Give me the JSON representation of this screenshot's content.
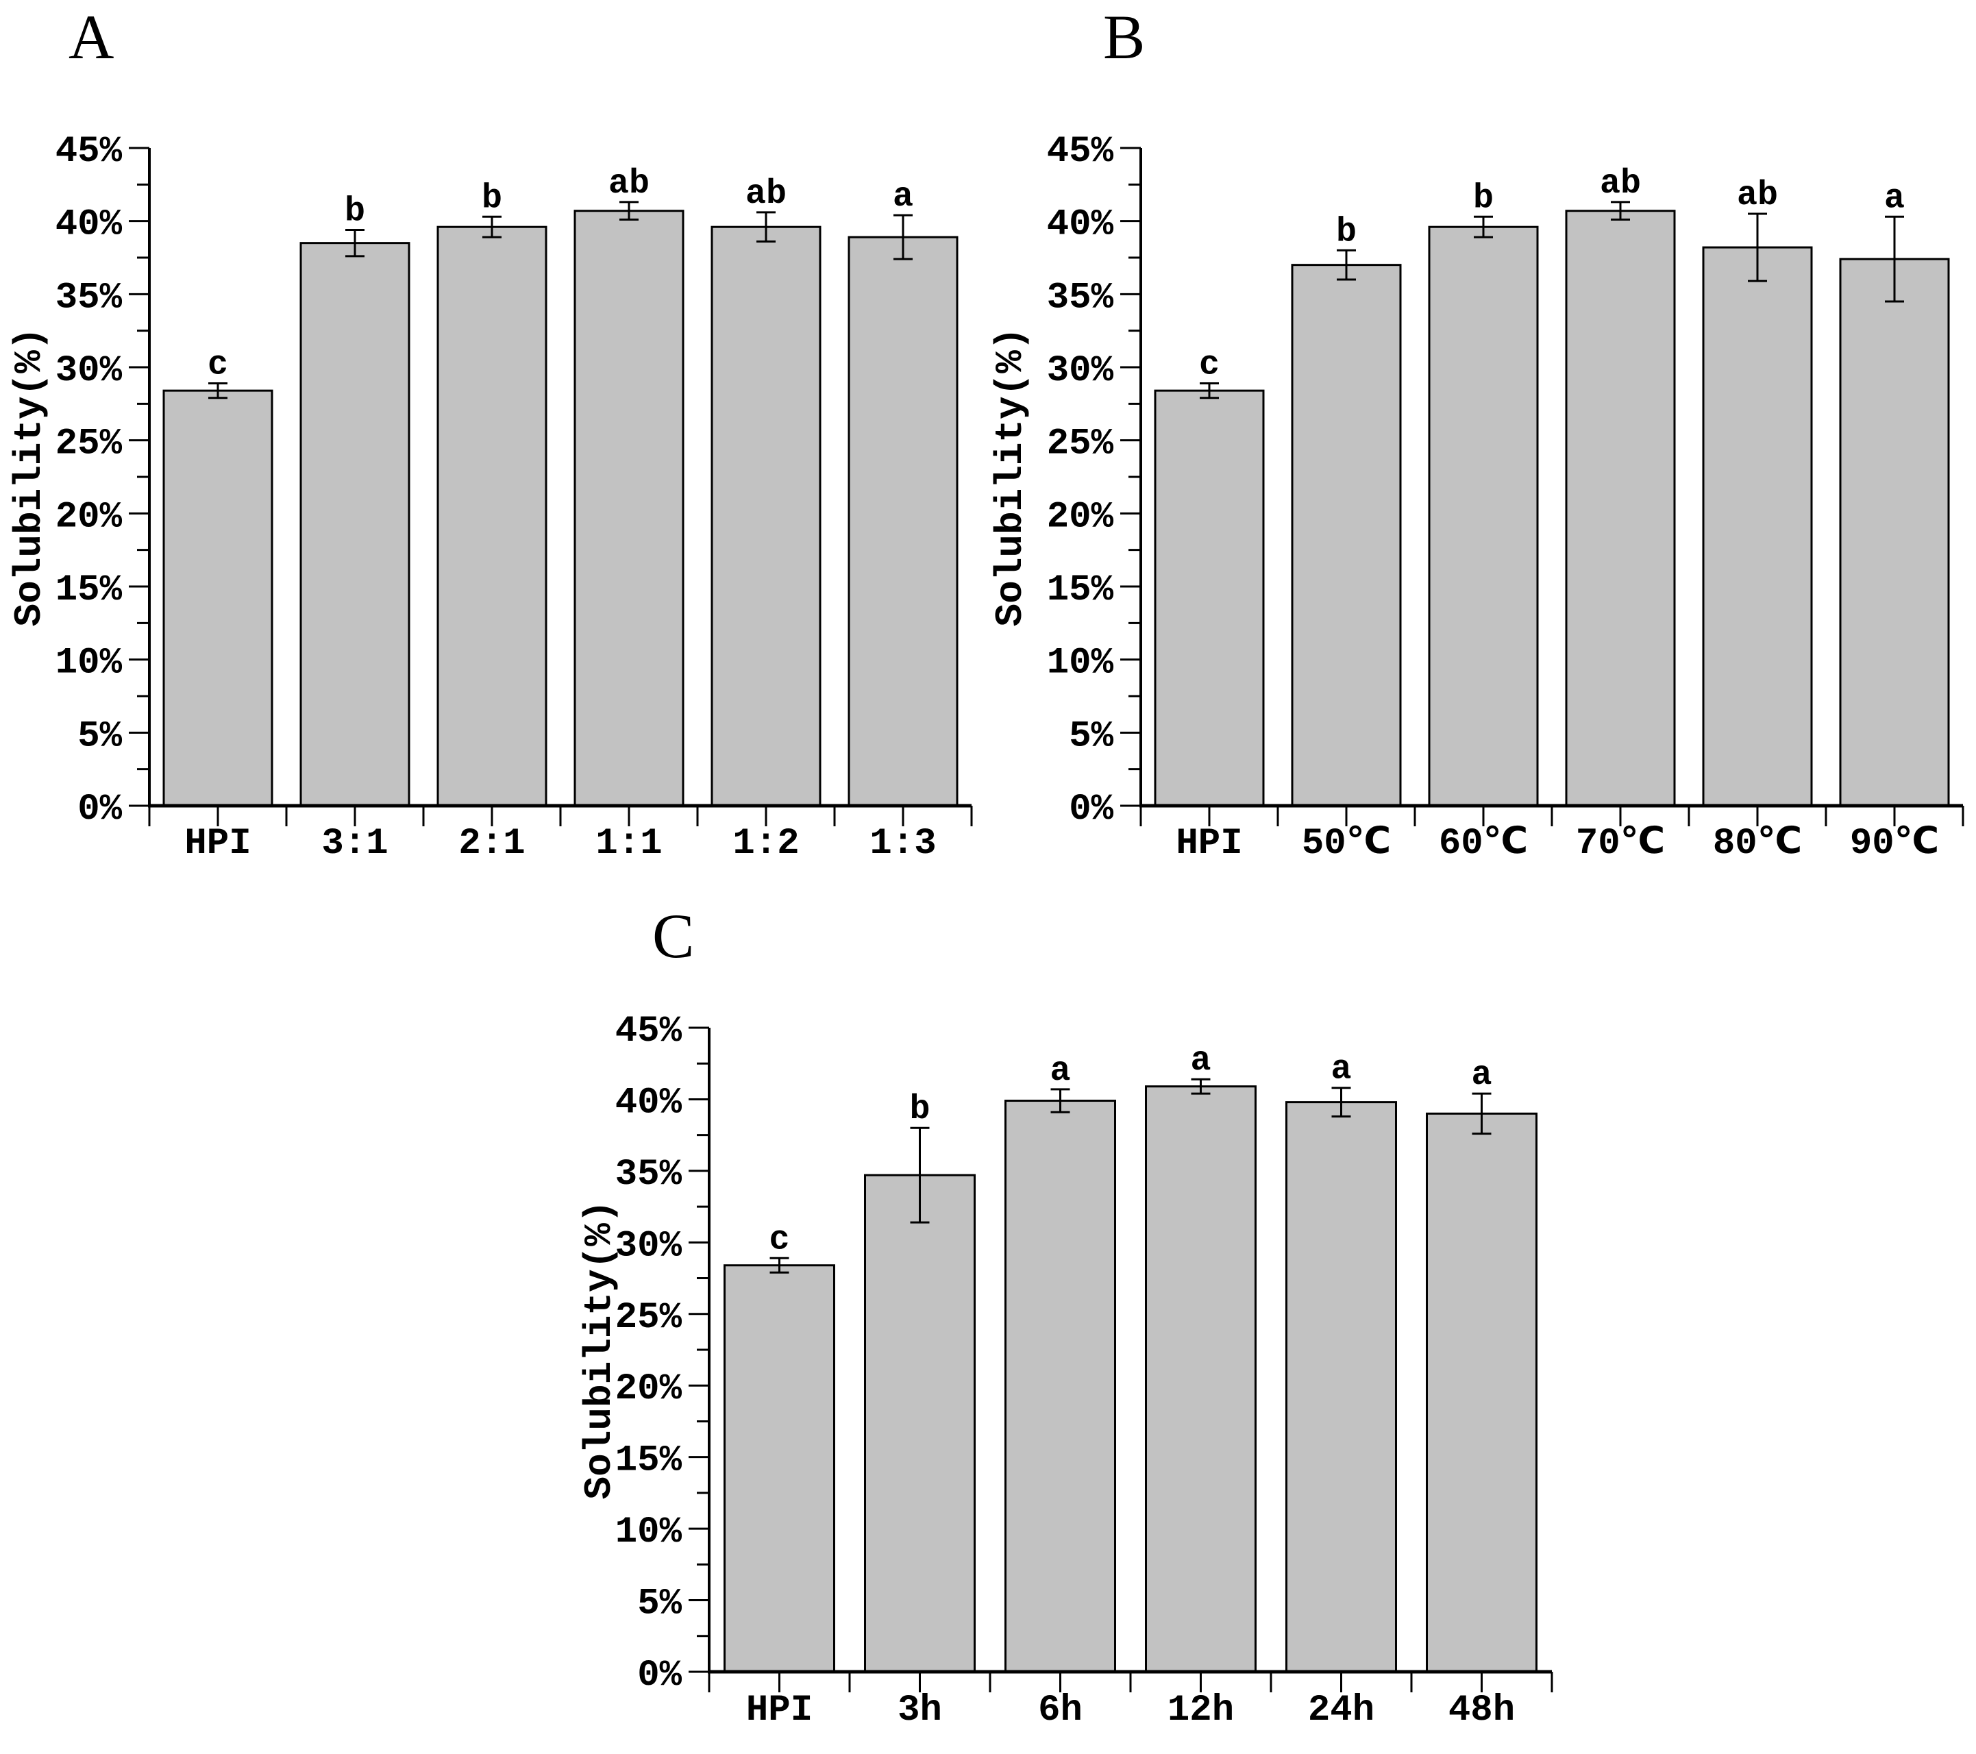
{
  "figure": {
    "background": "#ffffff",
    "bar_fill": "#c2c2c2",
    "bar_stroke": "#000000",
    "axis_color": "#000000"
  },
  "chart_data": [
    {
      "id": "A",
      "panel_label": "A",
      "type": "bar",
      "ylabel": "Solubility(%)",
      "ylim": [
        0,
        45
      ],
      "ytick_step": 5,
      "ytick_minor_step": 2.5,
      "ytick_labels": [
        "0%",
        "5%",
        "10%",
        "15%",
        "20%",
        "25%",
        "30%",
        "35%",
        "40%",
        "45%"
      ],
      "grid": false,
      "legend": "none",
      "categories": [
        "HPI",
        "3:1",
        "2:1",
        "1:1",
        "1:2",
        "1:3"
      ],
      "values": [
        28.4,
        38.5,
        39.6,
        40.7,
        39.6,
        38.9
      ],
      "errors": [
        0.5,
        0.9,
        0.7,
        0.6,
        1.0,
        1.5
      ],
      "sig_letters": [
        "c",
        "b",
        "b",
        "ab",
        "ab",
        "a"
      ]
    },
    {
      "id": "B",
      "panel_label": "B",
      "type": "bar",
      "ylabel": "Solubility(%)",
      "ylim": [
        0,
        45
      ],
      "ytick_step": 5,
      "ytick_minor_step": 2.5,
      "ytick_labels": [
        "0%",
        "5%",
        "10%",
        "15%",
        "20%",
        "25%",
        "30%",
        "35%",
        "40%",
        "45%"
      ],
      "grid": false,
      "legend": "none",
      "categories": [
        "HPI",
        "50℃",
        "60℃",
        "70℃",
        "80℃",
        "90℃"
      ],
      "values": [
        28.4,
        37.0,
        39.6,
        40.7,
        38.2,
        37.4
      ],
      "errors": [
        0.5,
        1.0,
        0.7,
        0.6,
        2.3,
        2.9
      ],
      "sig_letters": [
        "c",
        "b",
        "b",
        "ab",
        "ab",
        "a"
      ]
    },
    {
      "id": "C",
      "panel_label": "C",
      "type": "bar",
      "ylabel": "Solubility(%)",
      "ylim": [
        0,
        45
      ],
      "ytick_step": 5,
      "ytick_minor_step": 2.5,
      "ytick_labels": [
        "0%",
        "5%",
        "10%",
        "15%",
        "20%",
        "25%",
        "30%",
        "35%",
        "40%",
        "45%"
      ],
      "grid": false,
      "legend": "none",
      "categories": [
        "HPI",
        "3h",
        "6h",
        "12h",
        "24h",
        "48h"
      ],
      "values": [
        28.4,
        34.7,
        39.9,
        40.9,
        39.8,
        39.0
      ],
      "errors": [
        0.5,
        3.3,
        0.8,
        0.5,
        1.0,
        1.4
      ],
      "sig_letters": [
        "c",
        "b",
        "a",
        "a",
        "a",
        "a"
      ]
    }
  ]
}
